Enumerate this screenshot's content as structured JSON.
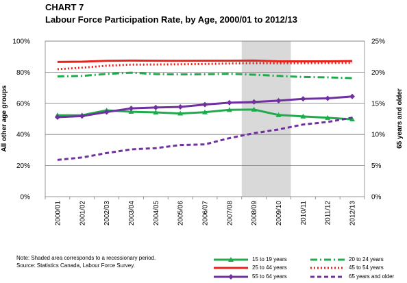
{
  "title": "CHART 7",
  "subtitle": "Labour Force Participation Rate, by Age, 2000/01 to 2012/13",
  "notes": {
    "line1": "Note: Shaded area corresponds to a recessionary period.",
    "line2": "Source: Statistics Canada, Labour Force Survey."
  },
  "colors": {
    "green": "#1faa4b",
    "red": "#e4231d",
    "purple": "#7030a0",
    "shade": "#d9d9d9",
    "grid": "#808080"
  },
  "chart_data": {
    "type": "line",
    "categories": [
      "2000/01",
      "2001/02",
      "2002/03",
      "2003/04",
      "2004/05",
      "2005/06",
      "2006/07",
      "2007/08",
      "2008/09",
      "2009/10",
      "2010/11",
      "2011/12",
      "2012/13"
    ],
    "xlabel": "",
    "ylabel": "All other age groups",
    "y2label": "65 years and older",
    "ylim": [
      0,
      100
    ],
    "y2lim": [
      0,
      25
    ],
    "yticks": [
      "0%",
      "20%",
      "40%",
      "60%",
      "80%",
      "100%"
    ],
    "y2ticks": [
      "0%",
      "5%",
      "10%",
      "15%",
      "20%",
      "25%"
    ],
    "shaded_range": [
      "2008/09",
      "2009/10"
    ],
    "grid": true,
    "legend": "bottom",
    "series": [
      {
        "name": "15 to 19 years",
        "axis": "left",
        "color": "#1faa4b",
        "style": "solid-triangle",
        "values": [
          52.3,
          52.4,
          55.5,
          54.6,
          54.2,
          53.5,
          54.3,
          55.8,
          56.0,
          52.5,
          51.6,
          50.7,
          49.8
        ]
      },
      {
        "name": "20 to 24 years",
        "axis": "left",
        "color": "#1faa4b",
        "style": "dashdot",
        "values": [
          77.3,
          77.6,
          78.9,
          79.7,
          78.8,
          78.6,
          78.7,
          79.0,
          78.4,
          77.6,
          76.9,
          76.7,
          76.2
        ]
      },
      {
        "name": "25 to 44 years",
        "axis": "left",
        "color": "#e4231d",
        "style": "solid",
        "values": [
          86.6,
          86.8,
          87.3,
          87.5,
          87.4,
          87.3,
          87.4,
          87.4,
          87.5,
          87.0,
          87.0,
          87.0,
          87.2
        ]
      },
      {
        "name": "45 to 54 years",
        "axis": "left",
        "color": "#e4231d",
        "style": "dotted",
        "values": [
          82.0,
          82.9,
          84.2,
          84.9,
          85.0,
          85.1,
          85.3,
          85.6,
          85.8,
          85.7,
          85.8,
          85.9,
          86.0
        ]
      },
      {
        "name": "55 to 64 years",
        "axis": "left",
        "color": "#7030a0",
        "style": "solid-diamond",
        "values": [
          51.1,
          51.8,
          54.4,
          56.8,
          57.3,
          57.7,
          59.2,
          60.4,
          60.9,
          61.7,
          62.9,
          63.2,
          64.4
        ]
      },
      {
        "name": "65 years and older",
        "axis": "right",
        "color": "#7030a0",
        "style": "dashed",
        "values": [
          5.9,
          6.3,
          7.0,
          7.6,
          7.8,
          8.3,
          8.4,
          9.4,
          10.2,
          10.8,
          11.6,
          12.0,
          12.7
        ]
      }
    ]
  }
}
